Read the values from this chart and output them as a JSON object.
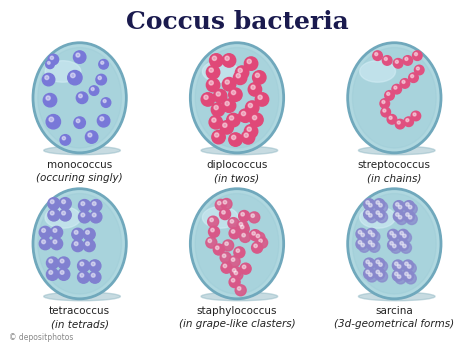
{
  "title": "Coccus bacteria",
  "title_color": "#1a1a4e",
  "title_fontsize": 18,
  "bg_color": "#ffffff",
  "dish_fill": "#b0d8e0",
  "dish_fill2": "#98c8d4",
  "dish_edge": "#70a8bc",
  "dish_highlight": "#d8f0f8",
  "mono_color": "#7878d8",
  "diplo_color": "#e04878",
  "strepto_color": "#e05080",
  "tetra_color": "#8080d0",
  "staph_color": "#d85888",
  "sarcina_color": "#8888cc",
  "shadow_color": "#90b8c4",
  "labels": [
    [
      "monococcus",
      "(occuring singly)"
    ],
    [
      "diplococcus",
      "(in twos)"
    ],
    [
      "streptococcus",
      "(in chains)"
    ],
    [
      "tetracoccus",
      "(in tetrads)"
    ],
    [
      "staphylococcus",
      "(in grape-like clasters)"
    ],
    [
      "sarcina",
      "(3d-geometrical forms)"
    ]
  ],
  "label_fontsize": 7.5,
  "watermark": "© depositphotos",
  "watermark_fontsize": 5.5
}
